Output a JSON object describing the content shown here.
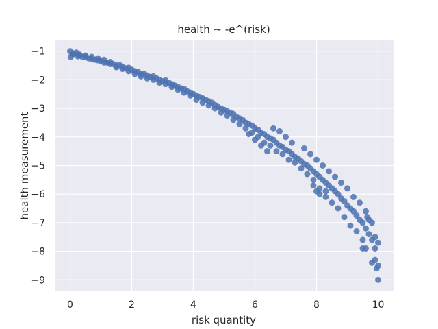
{
  "chart_data": {
    "type": "scatter",
    "title": "health ~ -e^(risk)",
    "xlabel": "risk quantity",
    "ylabel": "health measurement",
    "xlim": [
      -0.5,
      10.5
    ],
    "ylim": [
      -9.4,
      -0.6
    ],
    "xticks": [
      0,
      2,
      4,
      6,
      8,
      10
    ],
    "yticks": [
      -1,
      -2,
      -3,
      -4,
      -5,
      -6,
      -7,
      -8,
      -9
    ],
    "grid": true,
    "background_color": "#eaeaf2",
    "grid_color": "#ffffff",
    "point_color": "#4c72b0",
    "series": [
      {
        "points": [
          [
            0.0,
            -1.0
          ],
          [
            0.02,
            -1.2
          ],
          [
            0.1,
            -1.1
          ],
          [
            0.2,
            -1.05
          ],
          [
            0.25,
            -1.18
          ],
          [
            0.3,
            -1.12
          ],
          [
            0.4,
            -1.2
          ],
          [
            0.5,
            -1.15
          ],
          [
            0.6,
            -1.25
          ],
          [
            0.7,
            -1.2
          ],
          [
            0.8,
            -1.3
          ],
          [
            0.9,
            -1.25
          ],
          [
            1.0,
            -1.35
          ],
          [
            1.1,
            -1.3
          ],
          [
            1.2,
            -1.4
          ],
          [
            1.3,
            -1.38
          ],
          [
            1.4,
            -1.45
          ],
          [
            1.5,
            -1.5
          ],
          [
            1.6,
            -1.48
          ],
          [
            1.7,
            -1.55
          ],
          [
            1.8,
            -1.6
          ],
          [
            1.9,
            -1.58
          ],
          [
            2.0,
            -1.65
          ],
          [
            2.1,
            -1.7
          ],
          [
            2.2,
            -1.72
          ],
          [
            2.3,
            -1.8
          ],
          [
            2.4,
            -1.78
          ],
          [
            2.5,
            -1.85
          ],
          [
            2.6,
            -1.9
          ],
          [
            2.7,
            -1.88
          ],
          [
            2.8,
            -1.95
          ],
          [
            2.9,
            -2.0
          ],
          [
            3.0,
            -2.05
          ],
          [
            3.1,
            -2.02
          ],
          [
            3.2,
            -2.1
          ],
          [
            3.3,
            -2.15
          ],
          [
            3.4,
            -2.2
          ],
          [
            3.5,
            -2.25
          ],
          [
            3.6,
            -2.3
          ],
          [
            3.7,
            -2.32
          ],
          [
            3.8,
            -2.4
          ],
          [
            3.9,
            -2.45
          ],
          [
            4.0,
            -2.5
          ],
          [
            4.1,
            -2.55
          ],
          [
            4.2,
            -2.6
          ],
          [
            4.3,
            -2.65
          ],
          [
            4.4,
            -2.7
          ],
          [
            4.5,
            -2.75
          ],
          [
            4.6,
            -2.8
          ],
          [
            4.7,
            -2.88
          ],
          [
            4.8,
            -2.95
          ],
          [
            4.9,
            -3.0
          ],
          [
            5.0,
            -3.05
          ],
          [
            5.1,
            -3.1
          ],
          [
            5.2,
            -3.15
          ],
          [
            5.3,
            -3.2
          ],
          [
            5.4,
            -3.3
          ],
          [
            5.5,
            -3.35
          ],
          [
            5.6,
            -3.4
          ],
          [
            5.7,
            -3.5
          ],
          [
            5.8,
            -3.55
          ],
          [
            5.9,
            -3.6
          ],
          [
            6.0,
            -3.7
          ],
          [
            6.1,
            -3.75
          ],
          [
            6.2,
            -3.85
          ],
          [
            6.3,
            -3.9
          ],
          [
            6.4,
            -4.0
          ],
          [
            6.5,
            -4.05
          ],
          [
            6.6,
            -4.1
          ],
          [
            6.7,
            -4.2
          ],
          [
            6.8,
            -4.3
          ],
          [
            6.9,
            -4.35
          ],
          [
            7.0,
            -4.45
          ],
          [
            7.1,
            -4.5
          ],
          [
            7.2,
            -4.6
          ],
          [
            7.3,
            -4.7
          ],
          [
            7.4,
            -4.75
          ],
          [
            7.5,
            -4.85
          ],
          [
            7.6,
            -4.95
          ],
          [
            7.7,
            -5.0
          ],
          [
            7.8,
            -5.1
          ],
          [
            7.9,
            -5.2
          ],
          [
            8.0,
            -5.3
          ],
          [
            8.1,
            -5.4
          ],
          [
            8.2,
            -5.5
          ],
          [
            8.3,
            -5.6
          ],
          [
            8.4,
            -5.7
          ],
          [
            8.5,
            -5.8
          ],
          [
            8.6,
            -5.9
          ],
          [
            8.7,
            -6.0
          ],
          [
            8.8,
            -6.15
          ],
          [
            8.9,
            -6.25
          ],
          [
            9.0,
            -6.4
          ],
          [
            9.1,
            -6.5
          ],
          [
            9.2,
            -6.6
          ],
          [
            9.3,
            -6.75
          ],
          [
            9.4,
            -6.9
          ],
          [
            9.5,
            -7.0
          ],
          [
            9.6,
            -7.2
          ],
          [
            9.7,
            -7.4
          ],
          [
            9.8,
            -7.6
          ],
          [
            9.9,
            -7.9
          ],
          [
            10.0,
            -9.0
          ],
          [
            9.95,
            -8.6
          ],
          [
            10.0,
            -8.5
          ],
          [
            9.8,
            -8.4
          ],
          [
            9.6,
            -7.9
          ],
          [
            9.5,
            -7.6
          ],
          [
            9.3,
            -7.3
          ],
          [
            9.1,
            -7.1
          ],
          [
            8.9,
            -6.8
          ],
          [
            8.7,
            -6.5
          ],
          [
            8.5,
            -6.3
          ],
          [
            8.3,
            -6.1
          ],
          [
            8.1,
            -5.8
          ],
          [
            7.9,
            -5.5
          ],
          [
            7.7,
            -5.3
          ],
          [
            7.5,
            -5.1
          ],
          [
            7.3,
            -4.9
          ],
          [
            7.1,
            -4.8
          ],
          [
            6.9,
            -4.6
          ],
          [
            6.7,
            -4.5
          ],
          [
            6.5,
            -4.3
          ],
          [
            6.3,
            -4.2
          ],
          [
            6.1,
            -4.0
          ],
          [
            5.9,
            -3.85
          ],
          [
            5.7,
            -3.7
          ],
          [
            5.5,
            -3.55
          ],
          [
            5.3,
            -3.4
          ],
          [
            5.1,
            -3.25
          ],
          [
            4.9,
            -3.15
          ],
          [
            4.7,
            -3.0
          ],
          [
            4.5,
            -2.9
          ],
          [
            4.3,
            -2.8
          ],
          [
            4.1,
            -2.7
          ],
          [
            3.9,
            -2.55
          ],
          [
            3.7,
            -2.45
          ],
          [
            3.5,
            -2.35
          ],
          [
            3.3,
            -2.25
          ],
          [
            3.1,
            -2.15
          ],
          [
            2.9,
            -2.1
          ],
          [
            2.7,
            -2.0
          ],
          [
            2.5,
            -1.95
          ],
          [
            2.3,
            -1.88
          ],
          [
            2.1,
            -1.8
          ],
          [
            1.9,
            -1.7
          ],
          [
            1.7,
            -1.62
          ],
          [
            1.5,
            -1.56
          ],
          [
            1.3,
            -1.45
          ],
          [
            1.1,
            -1.4
          ],
          [
            0.9,
            -1.32
          ],
          [
            0.7,
            -1.28
          ],
          [
            0.5,
            -1.2
          ],
          [
            0.3,
            -1.15
          ],
          [
            0.1,
            -1.08
          ],
          [
            6.8,
            -3.8
          ],
          [
            6.6,
            -3.7
          ],
          [
            7.0,
            -4.0
          ],
          [
            7.2,
            -4.2
          ],
          [
            7.6,
            -4.4
          ],
          [
            7.8,
            -4.6
          ],
          [
            8.0,
            -4.8
          ],
          [
            8.2,
            -5.0
          ],
          [
            8.4,
            -5.2
          ],
          [
            8.6,
            -5.4
          ],
          [
            8.8,
            -5.6
          ],
          [
            9.0,
            -5.8
          ],
          [
            9.2,
            -6.1
          ],
          [
            9.4,
            -6.3
          ],
          [
            9.6,
            -6.6
          ],
          [
            9.8,
            -7.0
          ],
          [
            9.7,
            -6.9
          ],
          [
            9.65,
            -6.8
          ],
          [
            8.0,
            -5.9
          ],
          [
            8.1,
            -6.0
          ],
          [
            8.3,
            -5.9
          ],
          [
            7.9,
            -5.7
          ],
          [
            9.5,
            -7.9
          ],
          [
            9.9,
            -8.3
          ],
          [
            10.0,
            -7.7
          ],
          [
            9.9,
            -7.5
          ],
          [
            6.4,
            -4.5
          ],
          [
            6.2,
            -4.3
          ],
          [
            6.0,
            -4.1
          ],
          [
            5.8,
            -3.9
          ]
        ]
      }
    ]
  }
}
